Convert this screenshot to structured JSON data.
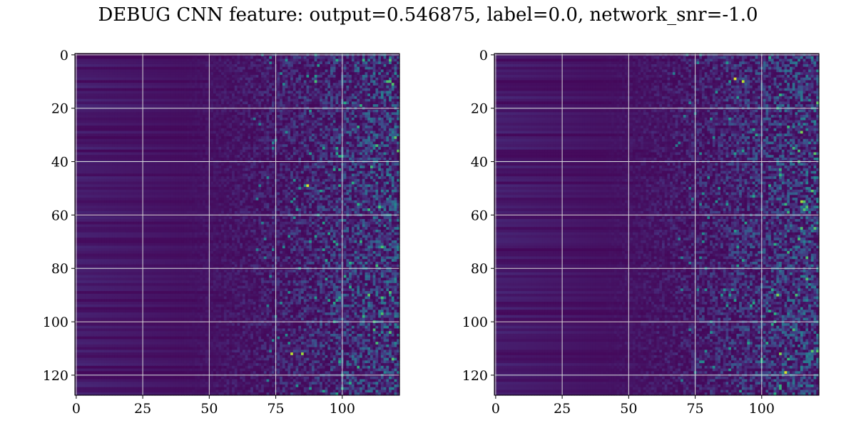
{
  "figure": {
    "title": "DEBUG CNN feature: output=0.546875, label=0.0, network_snr=-1.0"
  },
  "chart_data": [
    {
      "type": "heatmap",
      "title": "",
      "xlabel": "",
      "ylabel": "",
      "rows": 128,
      "cols": 122,
      "xlim": [
        -0.5,
        121.5
      ],
      "ylim": [
        127.5,
        -0.5
      ],
      "y_inverted": true,
      "colormap": "viridis",
      "value_range": [
        0,
        1
      ],
      "grid": true,
      "x_ticks": [
        0,
        25,
        50,
        75,
        100
      ],
      "y_ticks": [
        0,
        20,
        40,
        60,
        80,
        100,
        120
      ],
      "x_tick_labels": [
        "0",
        "25",
        "50",
        "75",
        "100"
      ],
      "y_tick_labels": [
        "0",
        "20",
        "40",
        "60",
        "80",
        "100",
        "120"
      ],
      "description_of_values": "Low, horizontally banded values for columns 0-50 rising to scattered higher values (noise-like) for columns 50-121",
      "hotspots": [
        {
          "row": 49,
          "col": 87,
          "value": 0.95
        },
        {
          "row": 112,
          "col": 81,
          "value": 0.9
        },
        {
          "row": 112,
          "col": 85,
          "value": 0.85
        },
        {
          "row": 90,
          "col": 110,
          "value": 0.75
        },
        {
          "row": 10,
          "col": 90,
          "value": 0.7
        }
      ]
    },
    {
      "type": "heatmap",
      "title": "",
      "xlabel": "",
      "ylabel": "",
      "rows": 128,
      "cols": 122,
      "xlim": [
        -0.5,
        121.5
      ],
      "ylim": [
        127.5,
        -0.5
      ],
      "y_inverted": true,
      "colormap": "viridis",
      "value_range": [
        0,
        1
      ],
      "grid": true,
      "x_ticks": [
        0,
        25,
        50,
        75,
        100
      ],
      "y_ticks": [
        0,
        20,
        40,
        60,
        80,
        100,
        120
      ],
      "x_tick_labels": [
        "0",
        "25",
        "50",
        "75",
        "100"
      ],
      "y_tick_labels": [
        "0",
        "20",
        "40",
        "60",
        "80",
        "100",
        "120"
      ],
      "description_of_values": "Low, horizontally banded values for columns 0-50 rising to scattered higher values (noise-like) for columns 50-121",
      "hotspots": [
        {
          "row": 9,
          "col": 90,
          "value": 0.95
        },
        {
          "row": 10,
          "col": 93,
          "value": 0.9
        },
        {
          "row": 119,
          "col": 109,
          "value": 0.95
        },
        {
          "row": 29,
          "col": 115,
          "value": 0.8
        },
        {
          "row": 55,
          "col": 115,
          "value": 0.85
        },
        {
          "row": 90,
          "col": 106,
          "value": 0.8
        },
        {
          "row": 112,
          "col": 107,
          "value": 0.8
        }
      ]
    }
  ]
}
